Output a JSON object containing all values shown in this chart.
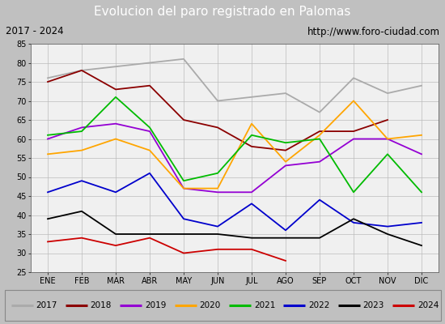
{
  "title": "Evolucion del paro registrado en Palomas",
  "subtitle_left": "2017 - 2024",
  "subtitle_right": "http://www.foro-ciudad.com",
  "months": [
    "ENE",
    "FEB",
    "MAR",
    "ABR",
    "MAY",
    "JUN",
    "JUL",
    "AGO",
    "SEP",
    "OCT",
    "NOV",
    "DIC"
  ],
  "ylim": [
    25,
    85
  ],
  "yticks": [
    25,
    30,
    35,
    40,
    45,
    50,
    55,
    60,
    65,
    70,
    75,
    80,
    85
  ],
  "series": [
    {
      "year": "2017",
      "color": "#aaaaaa",
      "values": [
        76,
        78,
        79,
        80,
        81,
        70,
        71,
        72,
        67,
        76,
        72,
        74
      ]
    },
    {
      "year": "2018",
      "color": "#8b0000",
      "values": [
        75,
        78,
        73,
        74,
        65,
        63,
        58,
        57,
        62,
        62,
        65,
        null
      ]
    },
    {
      "year": "2019",
      "color": "#9400d3",
      "values": [
        60,
        63,
        64,
        62,
        47,
        46,
        46,
        53,
        54,
        60,
        60,
        56
      ]
    },
    {
      "year": "2020",
      "color": "#ffa500",
      "values": [
        56,
        57,
        60,
        57,
        47,
        47,
        64,
        54,
        61,
        70,
        60,
        61
      ]
    },
    {
      "year": "2021",
      "color": "#00bb00",
      "values": [
        61,
        62,
        71,
        63,
        49,
        51,
        61,
        59,
        60,
        46,
        56,
        46
      ]
    },
    {
      "year": "2022",
      "color": "#0000cc",
      "values": [
        46,
        49,
        46,
        51,
        39,
        37,
        43,
        36,
        44,
        38,
        37,
        38
      ]
    },
    {
      "year": "2023",
      "color": "#000000",
      "values": [
        39,
        41,
        35,
        35,
        35,
        35,
        34,
        34,
        34,
        39,
        35,
        32
      ]
    },
    {
      "year": "2024",
      "color": "#cc0000",
      "values": [
        33,
        34,
        32,
        34,
        30,
        31,
        31,
        28,
        null,
        null,
        null,
        null
      ]
    }
  ],
  "title_bg_color": "#4472c4",
  "title_font_color": "#ffffff",
  "subtitle_bg_color": "#d8d8d8",
  "plot_bg_color": "#f0f0f0",
  "legend_bg_color": "#d8d8d8",
  "grid_color": "#bbbbbb"
}
